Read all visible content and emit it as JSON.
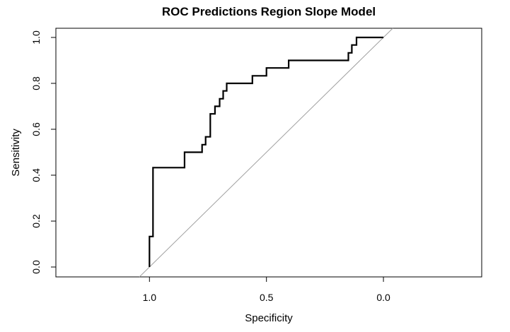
{
  "chart_data": {
    "type": "line",
    "title": "ROC Predictions Region Slope Model",
    "xlabel": "Specificity",
    "ylabel": "Sensitivity",
    "x_reversed": true,
    "xlim": [
      1.4,
      -0.42
    ],
    "ylim": [
      0.0,
      1.0
    ],
    "x_ticks": [
      1.0,
      0.5,
      0.0
    ],
    "x_tick_labels": [
      "1.0",
      "0.5",
      "0.0"
    ],
    "y_ticks": [
      0.0,
      0.2,
      0.4,
      0.6,
      0.8,
      1.0
    ],
    "y_tick_labels": [
      "0.0",
      "0.2",
      "0.4",
      "0.6",
      "0.8",
      "1.0"
    ],
    "grid": false,
    "legend": "none",
    "reference_line": {
      "description": "diagonal chance line",
      "color": "#a0a0a0",
      "x": [
        1.0,
        0.0
      ],
      "y": [
        0.0,
        1.0
      ]
    },
    "series": [
      {
        "color": "#000000",
        "points": [
          [
            1.0,
            0.0
          ],
          [
            1.0,
            0.133
          ],
          [
            0.985,
            0.133
          ],
          [
            0.985,
            0.433
          ],
          [
            0.85,
            0.433
          ],
          [
            0.85,
            0.5
          ],
          [
            0.775,
            0.5
          ],
          [
            0.775,
            0.533
          ],
          [
            0.76,
            0.533
          ],
          [
            0.76,
            0.567
          ],
          [
            0.74,
            0.567
          ],
          [
            0.74,
            0.667
          ],
          [
            0.72,
            0.667
          ],
          [
            0.72,
            0.7
          ],
          [
            0.7,
            0.7
          ],
          [
            0.7,
            0.733
          ],
          [
            0.685,
            0.733
          ],
          [
            0.685,
            0.767
          ],
          [
            0.67,
            0.767
          ],
          [
            0.67,
            0.8
          ],
          [
            0.56,
            0.8
          ],
          [
            0.56,
            0.833
          ],
          [
            0.5,
            0.833
          ],
          [
            0.5,
            0.867
          ],
          [
            0.405,
            0.867
          ],
          [
            0.405,
            0.9
          ],
          [
            0.15,
            0.9
          ],
          [
            0.15,
            0.933
          ],
          [
            0.135,
            0.933
          ],
          [
            0.135,
            0.967
          ],
          [
            0.115,
            0.967
          ],
          [
            0.115,
            1.0
          ],
          [
            0.0,
            1.0
          ]
        ]
      }
    ]
  }
}
